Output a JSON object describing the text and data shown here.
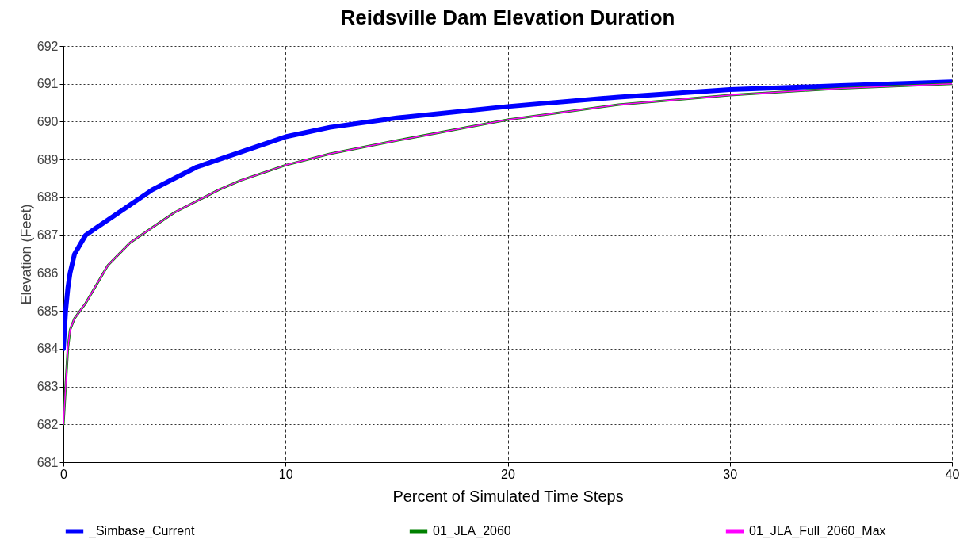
{
  "chart_data": {
    "type": "line",
    "title": "Reidsville Dam Elevation Duration",
    "xlabel": "Percent of Simulated Time Steps",
    "ylabel": "Elevation (Feet)",
    "x": [
      0,
      0.1,
      0.2,
      0.3,
      0.5,
      1,
      1.5,
      2,
      3,
      4,
      5,
      6,
      7,
      8,
      9,
      10,
      12,
      15,
      20,
      25,
      30,
      35,
      40
    ],
    "series": [
      {
        "name": "_Simbase_Current",
        "color": "#0000ff",
        "values": [
          684.0,
          685.0,
          685.6,
          686.0,
          686.5,
          687.0,
          687.2,
          687.4,
          687.8,
          688.2,
          688.5,
          688.8,
          689.0,
          689.2,
          689.4,
          689.6,
          689.85,
          690.1,
          690.4,
          690.65,
          690.85,
          690.95,
          691.05
        ]
      },
      {
        "name": "01_JLA_2060",
        "color": "#008000",
        "values": [
          682.0,
          683.0,
          684.0,
          684.5,
          684.8,
          685.2,
          685.7,
          686.2,
          686.8,
          687.2,
          687.6,
          687.9,
          688.2,
          688.45,
          688.65,
          688.85,
          689.15,
          689.5,
          690.05,
          690.45,
          690.7,
          690.88,
          691.0
        ]
      },
      {
        "name": "01_JLA_Full_2060_Max",
        "color": "#ff00ff",
        "values": [
          682.0,
          683.0,
          684.0,
          684.5,
          684.8,
          685.2,
          685.7,
          686.2,
          686.8,
          687.2,
          687.6,
          687.9,
          688.2,
          688.45,
          688.65,
          688.85,
          689.15,
          689.5,
          690.05,
          690.45,
          690.7,
          690.88,
          691.0
        ]
      }
    ],
    "xlim": [
      0,
      40
    ],
    "xticks": [
      0,
      10,
      20,
      30,
      40
    ],
    "ylim": [
      681,
      692
    ],
    "yticks": [
      681,
      682,
      683,
      684,
      685,
      686,
      687,
      688,
      689,
      690,
      691,
      692
    ],
    "grid": true,
    "legend": "bottom",
    "line_style": "solid",
    "marker": "none"
  }
}
